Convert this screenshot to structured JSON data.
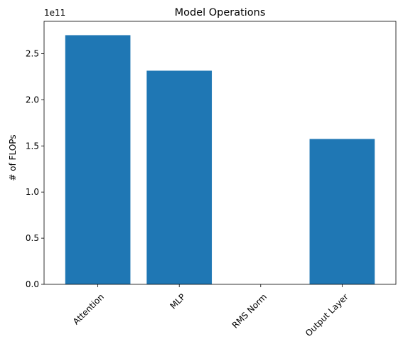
{
  "chart_data": {
    "type": "bar",
    "title": "Model Operations",
    "xlabel": "",
    "ylabel": "# of FLOPs",
    "offset_label": "1e11",
    "categories": [
      "Attention",
      "MLP",
      "RMS Norm",
      "Output Layer"
    ],
    "values": [
      270000000000,
      231500000000,
      0,
      157500000000
    ],
    "ylim": [
      0,
      285000000000
    ],
    "y_ticks": [
      0,
      50000000000,
      100000000000,
      150000000000,
      200000000000,
      250000000000
    ],
    "y_tick_labels": [
      "0.0",
      "0.5",
      "1.0",
      "1.5",
      "2.0",
      "2.5"
    ],
    "bar_color": "#1f77b4",
    "grid": false,
    "legend": "none"
  }
}
